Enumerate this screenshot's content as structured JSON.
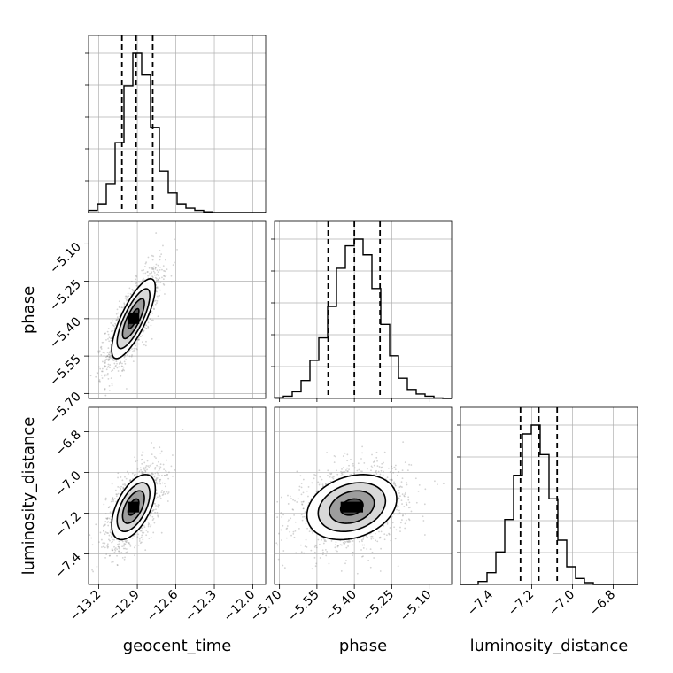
{
  "chart_data": {
    "type": "corner",
    "parameters": [
      {
        "name": "geocent_time",
        "label": "geocent_time",
        "range": [
          -13.28,
          -11.9
        ],
        "ticks": [
          -13.2,
          -12.9,
          -12.6,
          -12.3,
          -12.0
        ],
        "tick_labels": [
          "−13.2",
          "−12.9",
          "−12.6",
          "−12.3",
          "−12.0"
        ],
        "quantiles": [
          -13.02,
          -12.91,
          -12.78
        ],
        "hist_edges_start": -13.28,
        "hist_bin_width": 0.069,
        "hist_counts": [
          1,
          4,
          13,
          32,
          58,
          73,
          63,
          39,
          19,
          9,
          4,
          2,
          1,
          0.3,
          0,
          0,
          0,
          0,
          0,
          0
        ]
      },
      {
        "name": "phase",
        "label": "phase",
        "range": [
          -5.72,
          -5.01
        ],
        "ticks": [
          -5.7,
          -5.55,
          -5.4,
          -5.25,
          -5.1
        ],
        "tick_labels": [
          "−5.70",
          "−5.55",
          "−5.40",
          "−5.25",
          "−5.10"
        ],
        "quantiles": [
          -5.505,
          -5.4,
          -5.297
        ],
        "hist_edges_start": -5.72,
        "hist_bin_width": 0.0355,
        "hist_counts": [
          0.3,
          1,
          3,
          8,
          17,
          27,
          41,
          58,
          68,
          71,
          64,
          49,
          33,
          19,
          9,
          4,
          2,
          1,
          0.2,
          0
        ]
      },
      {
        "name": "luminosity_distance",
        "label": "luminosity_distance",
        "range": [
          -7.55,
          -6.68
        ],
        "ticks": [
          -7.4,
          -7.2,
          -7.0,
          -6.8
        ],
        "tick_labels": [
          "−7.4",
          "−7.2",
          "−7.0",
          "−6.8"
        ],
        "quantiles": [
          -7.255,
          -7.165,
          -7.075
        ],
        "hist_edges_start": -7.55,
        "hist_bin_width": 0.0435,
        "hist_counts": [
          0,
          0,
          1,
          4,
          11,
          22,
          37,
          51,
          54,
          44,
          29,
          15,
          6,
          2,
          0.6,
          0,
          0,
          0,
          0,
          0
        ]
      }
    ],
    "pairs": [
      {
        "x": "geocent_time",
        "y": "phase",
        "mean": [
          -12.93,
          -5.4
        ],
        "sd": [
          0.085,
          0.08
        ],
        "rho": 0.78
      },
      {
        "x": "geocent_time",
        "y": "luminosity_distance",
        "mean": [
          -12.93,
          -7.17
        ],
        "sd": [
          0.085,
          0.08
        ],
        "rho": 0.55
      },
      {
        "x": "phase",
        "y": "luminosity_distance",
        "mean": [
          -5.41,
          -7.17
        ],
        "sd": [
          0.09,
          0.08
        ],
        "rho": 0.25
      }
    ],
    "contour_levels": [
      0.5,
      1.0,
      1.5,
      2.0
    ],
    "grid": true,
    "colors": {
      "line": "#000000",
      "grid": "#b0b0b0",
      "scatter": "#808080"
    }
  }
}
